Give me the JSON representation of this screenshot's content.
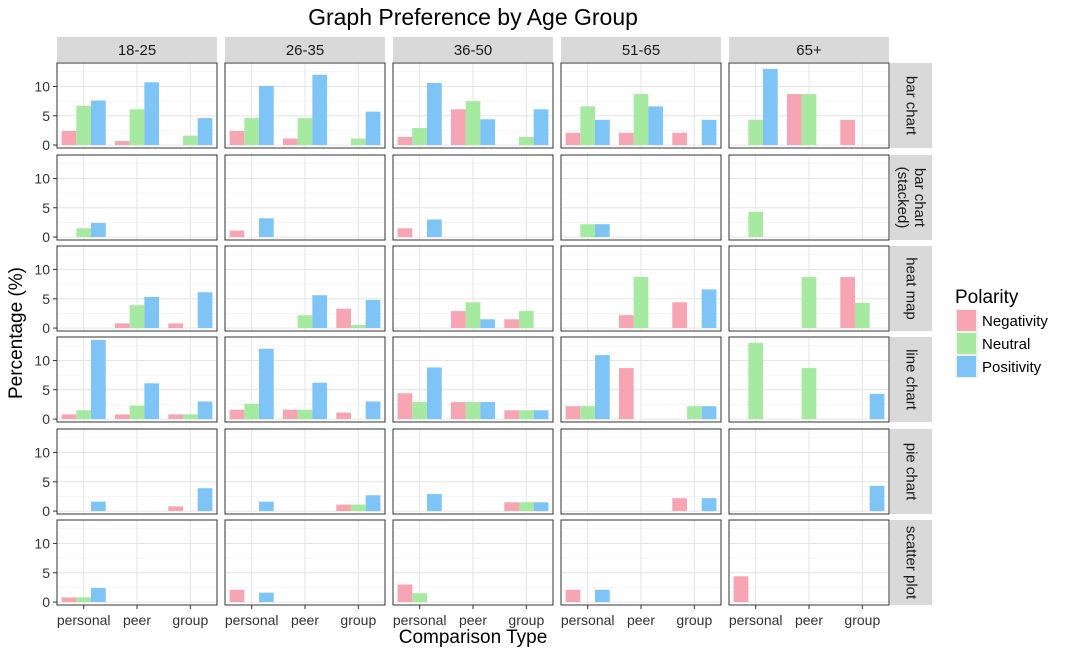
{
  "chart_data": {
    "type": "bar",
    "title": "Graph Preference by Age Group",
    "xlabel": "Comparison Type",
    "ylabel": "Percentage (%)",
    "ylim": [
      -0.5,
      14
    ],
    "yticks": [
      "0",
      "5",
      "10"
    ],
    "categories": [
      "personal",
      "peer",
      "group"
    ],
    "columns": [
      "18-25",
      "26-35",
      "36-50",
      "51-65",
      "65+"
    ],
    "rows": [
      "bar chart",
      "bar chart (stacked)",
      "heat map",
      "line chart",
      "pie chart",
      "scatter plot"
    ],
    "row_label_lines": [
      [
        "bar chart"
      ],
      [
        "bar chart",
        "(stacked)"
      ],
      [
        "heat map"
      ],
      [
        "line chart"
      ],
      [
        "pie chart"
      ],
      [
        "scatter plot"
      ]
    ],
    "grid": true,
    "legend": {
      "title": "Polarity",
      "position": "right",
      "series": [
        {
          "name": "Negativity",
          "color": "#F8A5B3"
        },
        {
          "name": "Neutral",
          "color": "#A6E9A0"
        },
        {
          "name": "Positivity",
          "color": "#7EC4F6"
        }
      ]
    },
    "panels": [
      [
        [
          [
            2.4,
            6.7,
            7.6
          ],
          [
            0.7,
            6.1,
            10.7
          ],
          [
            0,
            1.6,
            4.6
          ]
        ],
        [
          [
            2.4,
            4.6,
            10.1
          ],
          [
            1.1,
            4.6,
            12.0
          ],
          [
            0,
            1.1,
            5.7
          ]
        ],
        [
          [
            1.4,
            2.9,
            10.6
          ],
          [
            6.1,
            7.5,
            4.4
          ],
          [
            0,
            1.4,
            6.1
          ]
        ],
        [
          [
            2.1,
            6.6,
            4.3
          ],
          [
            2.1,
            8.7,
            6.6
          ],
          [
            2.1,
            0,
            4.3
          ]
        ],
        [
          [
            0,
            4.3,
            13.0
          ],
          [
            8.7,
            8.7,
            0
          ],
          [
            4.3,
            0,
            0
          ]
        ]
      ],
      [
        [
          [
            0,
            1.5,
            2.4
          ],
          [
            0,
            0,
            0
          ],
          [
            0,
            0,
            0
          ]
        ],
        [
          [
            1.1,
            0,
            3.2
          ],
          [
            0,
            0,
            0
          ],
          [
            0,
            0,
            0
          ]
        ],
        [
          [
            1.5,
            0,
            3.0
          ],
          [
            0,
            0,
            0
          ],
          [
            0,
            0,
            0
          ]
        ],
        [
          [
            0,
            2.2,
            2.2
          ],
          [
            0,
            0,
            0
          ],
          [
            0,
            0,
            0
          ]
        ],
        [
          [
            0,
            4.3,
            0
          ],
          [
            0,
            0,
            0
          ],
          [
            0,
            0,
            0
          ]
        ]
      ],
      [
        [
          [
            0,
            0,
            0
          ],
          [
            0.8,
            3.9,
            5.3
          ],
          [
            0.8,
            0,
            6.1
          ]
        ],
        [
          [
            0,
            0,
            0
          ],
          [
            0,
            2.2,
            5.6
          ],
          [
            3.3,
            0.5,
            4.8
          ]
        ],
        [
          [
            0,
            0,
            0
          ],
          [
            2.9,
            4.4,
            1.5
          ],
          [
            1.5,
            2.9,
            0
          ]
        ],
        [
          [
            0,
            0,
            0
          ],
          [
            2.2,
            8.7,
            0
          ],
          [
            4.4,
            0,
            6.6
          ]
        ],
        [
          [
            0,
            0,
            0
          ],
          [
            0,
            8.7,
            0
          ],
          [
            8.7,
            4.3,
            0
          ]
        ]
      ],
      [
        [
          [
            0.8,
            1.5,
            13.5
          ],
          [
            0.8,
            2.3,
            6.1
          ],
          [
            0.8,
            0.8,
            3.0
          ]
        ],
        [
          [
            1.6,
            2.6,
            12.0
          ],
          [
            1.6,
            1.6,
            6.2
          ],
          [
            1.1,
            0,
            3.0
          ]
        ],
        [
          [
            4.4,
            2.9,
            8.8
          ],
          [
            2.9,
            2.9,
            2.9
          ],
          [
            1.5,
            1.5,
            1.5
          ]
        ],
        [
          [
            2.2,
            2.2,
            10.9
          ],
          [
            8.7,
            0,
            0
          ],
          [
            0,
            2.2,
            2.2
          ]
        ],
        [
          [
            0,
            13.0,
            0
          ],
          [
            0,
            8.7,
            0
          ],
          [
            0,
            0,
            4.3
          ]
        ]
      ],
      [
        [
          [
            0,
            0,
            1.6
          ],
          [
            0,
            0,
            0
          ],
          [
            0.8,
            0,
            3.9
          ]
        ],
        [
          [
            0,
            0,
            1.6
          ],
          [
            0,
            0,
            0
          ],
          [
            1.1,
            1.1,
            2.7
          ]
        ],
        [
          [
            0,
            0,
            2.9
          ],
          [
            0,
            0,
            0
          ],
          [
            1.5,
            1.5,
            1.5
          ]
        ],
        [
          [
            0,
            0,
            0
          ],
          [
            0,
            0,
            0
          ],
          [
            2.2,
            0,
            2.2
          ]
        ],
        [
          [
            0,
            0,
            0
          ],
          [
            0,
            0,
            0
          ],
          [
            0,
            0,
            4.3
          ]
        ]
      ],
      [
        [
          [
            0.8,
            0.8,
            2.4
          ],
          [
            0,
            0,
            0
          ],
          [
            0,
            0,
            0
          ]
        ],
        [
          [
            2.1,
            0,
            1.6
          ],
          [
            0,
            0,
            0
          ],
          [
            0,
            0,
            0
          ]
        ],
        [
          [
            3.0,
            1.5,
            0
          ],
          [
            0,
            0,
            0
          ],
          [
            0,
            0,
            0
          ]
        ],
        [
          [
            2.1,
            0,
            2.1
          ],
          [
            0,
            0,
            0
          ],
          [
            0,
            0,
            0
          ]
        ],
        [
          [
            4.4,
            0,
            0
          ],
          [
            0,
            0,
            0
          ],
          [
            0,
            0,
            0
          ]
        ]
      ]
    ]
  }
}
